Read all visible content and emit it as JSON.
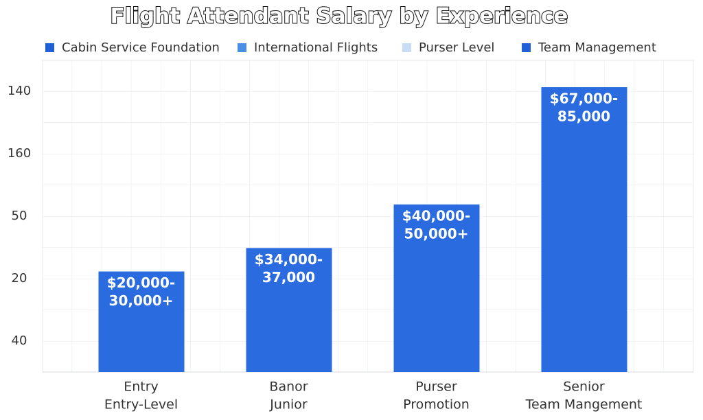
{
  "chart_data": {
    "type": "bar",
    "title": "Flight Attendant Salary by Experience",
    "legend": [
      {
        "name": "Cabin Service Foundation",
        "color": "#1f5fd8"
      },
      {
        "name": "International Flights",
        "color": "#4a8fe6"
      },
      {
        "name": "Purser Level",
        "color": "#c9dcf6"
      },
      {
        "name": "Team Management",
        "color": "#1f5fd8"
      }
    ],
    "y_axis_labels": [
      "140",
      "160",
      "50",
      "20",
      "40"
    ],
    "categories": [
      [
        "Entry",
        "Entry-Level"
      ],
      [
        "Banor",
        "Junior"
      ],
      [
        "Purser",
        "Promotion"
      ],
      [
        "Senior",
        "Team Mangement"
      ]
    ],
    "values": [
      30000,
      37000,
      50000,
      85000
    ],
    "value_labels": [
      [
        "$20,000-",
        "30,000+"
      ],
      [
        "$34,000-",
        "37,000"
      ],
      [
        "$40,000-",
        "50,000+"
      ],
      [
        "$67,000-",
        "85,000"
      ]
    ],
    "color": "#2a6be0",
    "ylim": [
      0,
      93000
    ],
    "grid": true
  }
}
